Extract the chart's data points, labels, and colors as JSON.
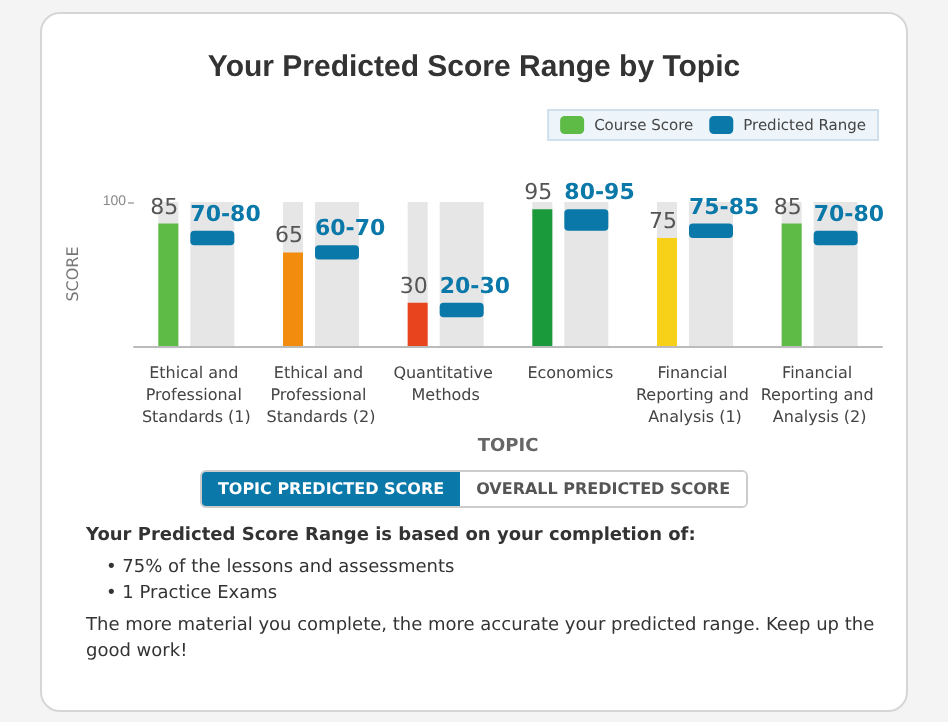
{
  "chart_data": {
    "type": "bar",
    "title": "Your Predicted Score Range by Topic",
    "xlabel": "TOPIC",
    "ylabel": "SCORE",
    "categories": [
      "Ethical and Professional Standards (1)",
      "Ethical and Professional Standards (2)",
      "Quantitative Methods",
      "Economics",
      "Financial Reporting and Analysis (1)",
      "Financial Reporting and Analysis (2)"
    ],
    "ylim": [
      0,
      100
    ],
    "yticks": [
      100
    ],
    "grid": false,
    "legend": "top right",
    "series": [
      {
        "name": "Course Score",
        "colors": [
          "#5dbb46",
          "#f28c0f",
          "#e8441e",
          "#1a9a3a",
          "#f7d117",
          "#5dbb46"
        ],
        "values": [
          85,
          65,
          30,
          95,
          75,
          85
        ],
        "value_labels": [
          "85",
          "65",
          "30",
          "95",
          "75",
          "85"
        ]
      },
      {
        "name": "Predicted Range",
        "color": "#0a78a8",
        "base": [
          70,
          60,
          20,
          80,
          75,
          70
        ],
        "values": [
          10,
          10,
          10,
          15,
          10,
          10
        ],
        "value_labels": [
          "70-80",
          "60-70",
          "20-30",
          "80-95",
          "75-85",
          "70-80"
        ]
      }
    ],
    "annotations": [
      "TOPIC PREDICTED SCORE",
      "OVERALL PREDICTED SCORE",
      "Your Predicted Score Range is based on your completion of:",
      "• 75% of the lessons and assessments",
      "• 1 Practice Exams",
      "The more material you complete, the more accurate your predicted range. Keep up the good work!"
    ]
  }
}
